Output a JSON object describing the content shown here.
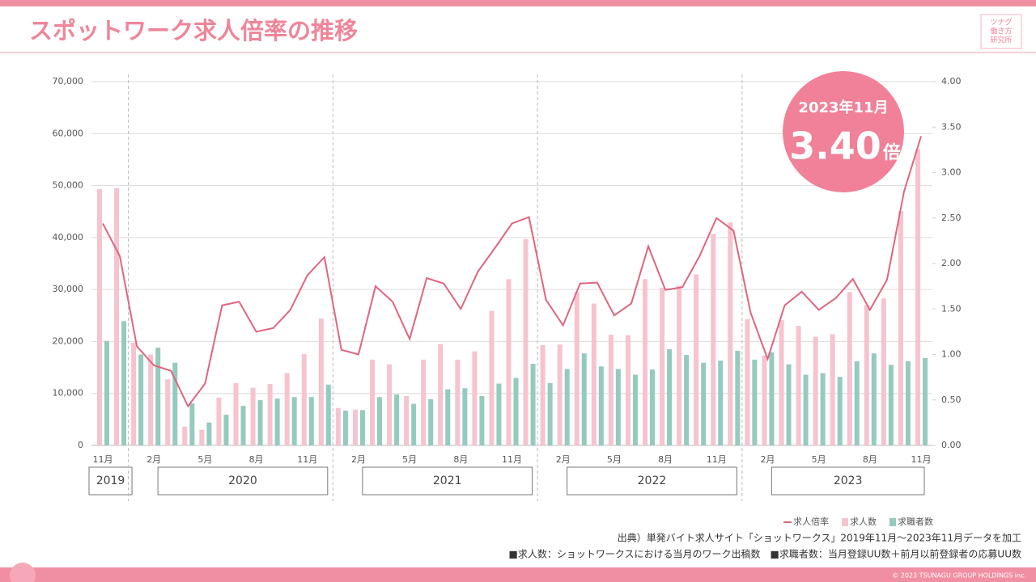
{
  "header": {
    "title": "スポットワーク求人倍率の推移",
    "logo": [
      "ツナグ",
      "働き方",
      "研究所"
    ]
  },
  "chart_data": {
    "type": "bar_line",
    "categories": [
      "11月",
      null,
      null,
      "2月",
      null,
      null,
      "5月",
      null,
      null,
      "8月",
      null,
      null,
      "11月",
      null,
      null,
      "2月",
      null,
      null,
      "5月",
      null,
      null,
      "8月",
      null,
      null,
      "11月",
      null,
      null,
      "2月",
      null,
      null,
      "5月",
      null,
      null,
      "8月",
      null,
      null,
      "11月",
      null,
      null,
      "2月",
      null,
      null,
      "5月",
      null,
      null,
      "8月",
      null,
      null,
      "11月"
    ],
    "year_labels": [
      "2019",
      "2020",
      "2021",
      "2022",
      "2023"
    ],
    "series": [
      {
        "name": "求人倍率",
        "color": "#e0657f",
        "axis": "y2",
        "values": [
          2.44,
          2.08,
          1.09,
          0.88,
          0.82,
          0.43,
          0.68,
          1.54,
          1.58,
          1.25,
          1.29,
          1.49,
          1.87,
          2.07,
          1.05,
          1.0,
          1.75,
          1.58,
          1.17,
          1.84,
          1.78,
          1.5,
          1.91,
          2.17,
          2.44,
          2.51,
          1.6,
          1.32,
          1.78,
          1.79,
          1.43,
          1.56,
          2.19,
          1.71,
          1.74,
          2.08,
          2.5,
          2.36,
          1.46,
          0.95,
          1.54,
          1.69,
          1.49,
          1.62,
          1.83,
          1.49,
          1.82,
          2.79,
          3.4
        ]
      },
      {
        "name": "求人数",
        "color": "#f6c3cf",
        "values": [
          49300,
          49500,
          19800,
          17500,
          12700,
          3600,
          3000,
          9200,
          12000,
          11100,
          11800,
          13900,
          17600,
          24400,
          7200,
          6900,
          16500,
          15600,
          9500,
          16500,
          19500,
          16500,
          18100,
          25900,
          32000,
          39700,
          19300,
          19400,
          29500,
          27300,
          21300,
          21200,
          32000,
          30300,
          30700,
          32900,
          40700,
          42900,
          24300,
          17300,
          24100,
          23000,
          20900,
          21400,
          29500,
          27000,
          28300,
          45100,
          57000
        ]
      },
      {
        "name": "求職者数",
        "color": "#94cbbd",
        "values": [
          20100,
          23900,
          17500,
          18800,
          15900,
          8100,
          4400,
          5900,
          7600,
          8700,
          9000,
          9300,
          9300,
          11700,
          6700,
          6800,
          9300,
          9800,
          8000,
          8900,
          10800,
          11000,
          9500,
          11900,
          13000,
          15700,
          12000,
          14700,
          17700,
          15200,
          14700,
          13600,
          14600,
          18500,
          17400,
          15900,
          16300,
          18200,
          16500,
          17900,
          15600,
          13600,
          13900,
          13200,
          16200,
          17700,
          15500,
          16200,
          16800
        ]
      }
    ],
    "ylim": [
      0,
      70000
    ],
    "yticks": [
      0,
      {
        "value": 10000,
        "label": "10,000"
      },
      {
        "value": 20000,
        "label": "20,000"
      },
      {
        "value": 30000,
        "label": "30,000"
      },
      {
        "value": 40000,
        "label": "40,000"
      },
      {
        "value": 50000,
        "label": "50,000"
      },
      {
        "value": 60000,
        "label": "60,000"
      },
      {
        "value": 70000,
        "label": "70,000"
      }
    ],
    "y2lim": [
      0,
      4
    ],
    "y2ticks": [
      {
        "value": 0,
        "label": "0.00"
      },
      {
        "value": 0.5,
        "label": "0.50"
      },
      {
        "value": 1,
        "label": "1.00"
      },
      {
        "value": 1.5,
        "label": "1.50"
      },
      {
        "value": 2,
        "label": "2.00"
      },
      {
        "value": 2.5,
        "label": "2.50"
      },
      {
        "value": 3,
        "label": "3.00"
      },
      {
        "value": 3.5,
        "label": "3.50"
      },
      {
        "value": 4,
        "label": "4.00"
      }
    ],
    "grid": true,
    "callout": {
      "date": "2023年11月",
      "value": "3.40",
      "unit": "倍"
    }
  },
  "notes": [
    "出典）単発バイト求人サイト「ショットワークス」2019年11月～2023年11月データを加工",
    "■求人数：ショットワークスにおける当月のワーク出稿数　■求職者数：当月登録UU数＋前月以前登録者の応募UU数"
  ],
  "footer": "© 2023 TSUNAGU GROUP HOLDINGS inc."
}
